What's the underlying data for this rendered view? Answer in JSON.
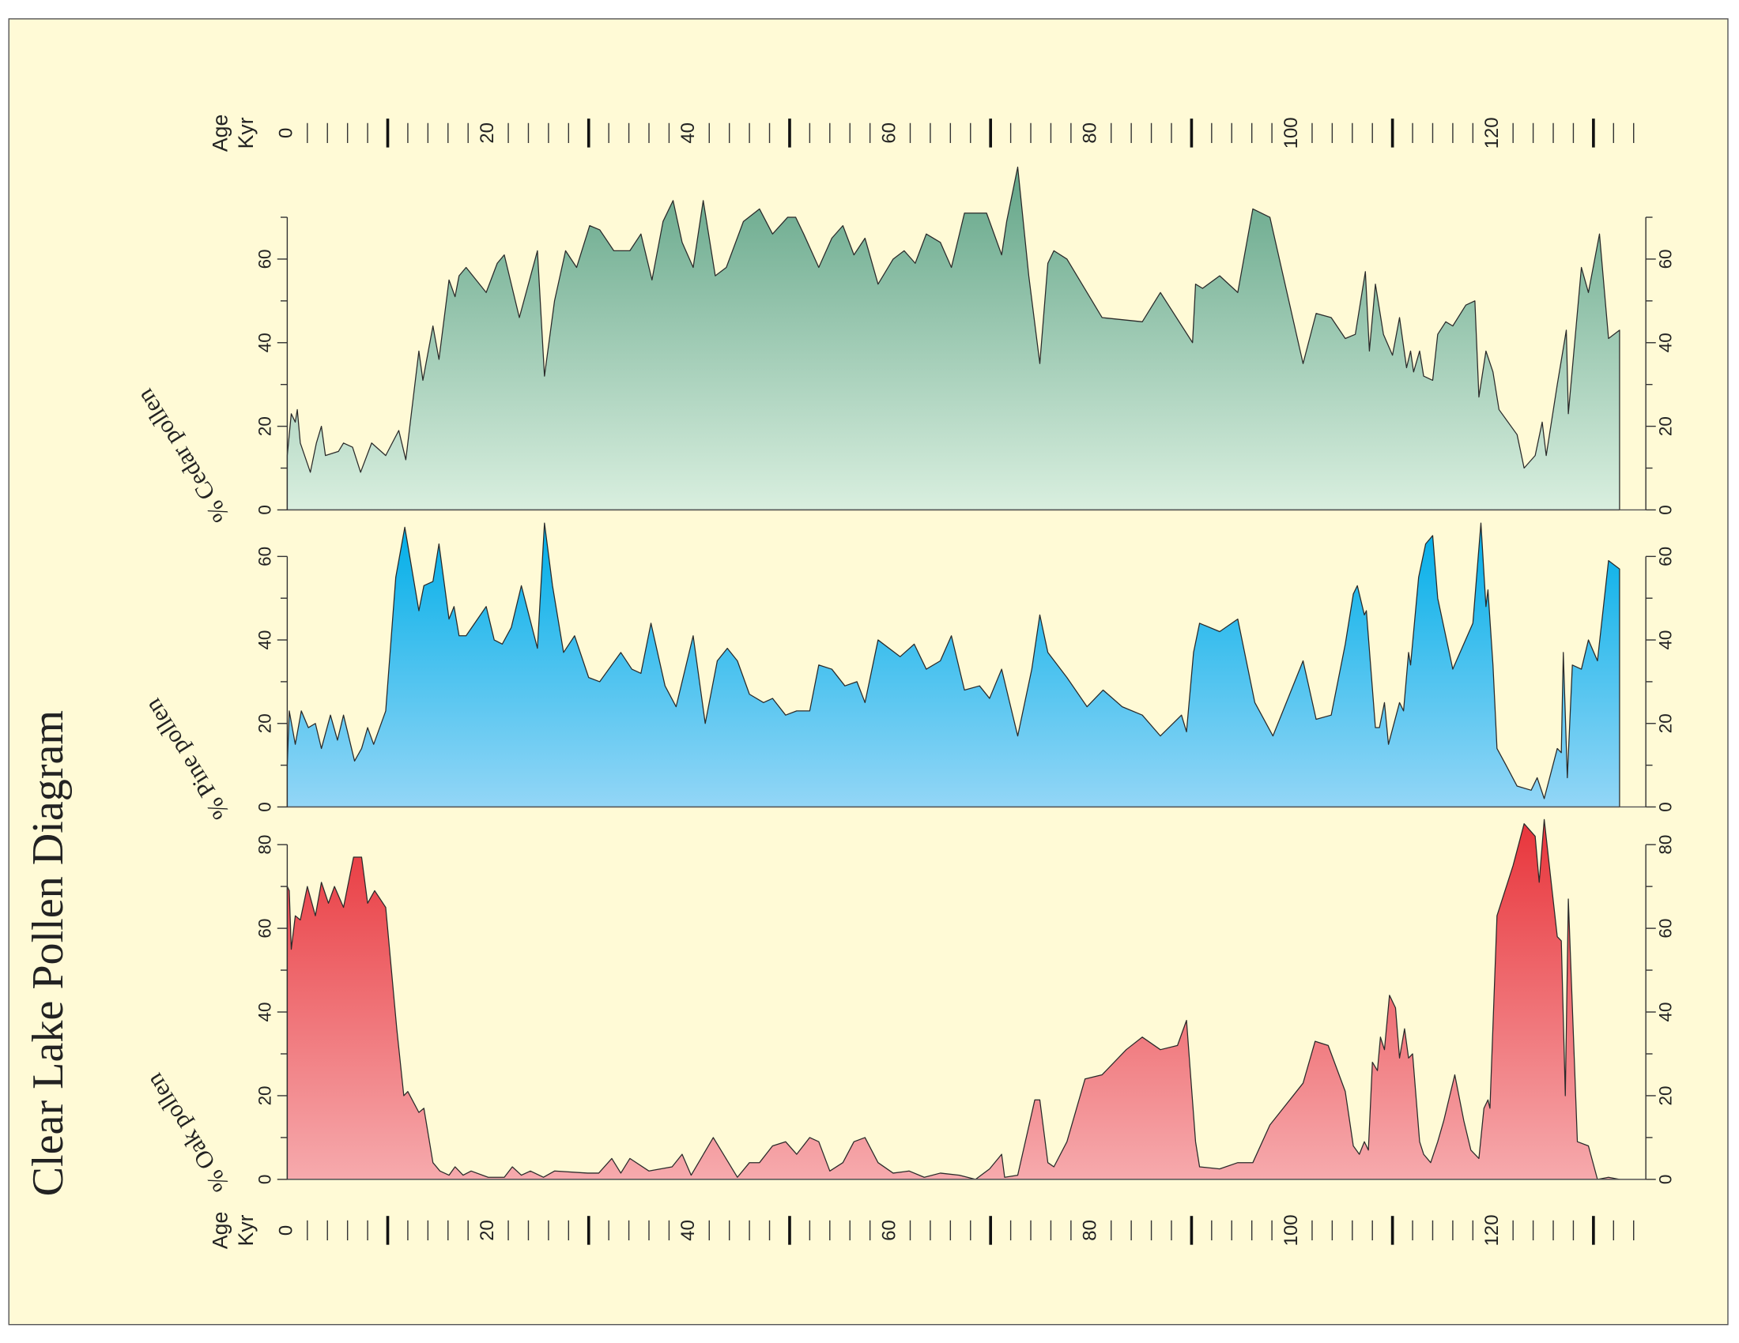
{
  "title": "Clear Lake Pollen Diagram",
  "x_axis": {
    "label": [
      "Age",
      "Kyr"
    ],
    "xlim": [
      0,
      134
    ],
    "xticks": [
      0,
      20,
      40,
      60,
      80,
      100,
      120
    ],
    "xticks_major": [
      10,
      30,
      50,
      70,
      90,
      110,
      130
    ],
    "xminor_step": 2
  },
  "chart_data": [
    {
      "type": "area",
      "ylabel": "% Cedar pollen",
      "color": [
        "#63a588",
        "#d9efdf"
      ],
      "ylim": [
        0,
        70
      ],
      "yticks": [
        0,
        20,
        40,
        60
      ],
      "yminor_step": 10,
      "x": [
        0,
        0.4,
        0.8,
        1,
        1.3,
        2.3,
        2.9,
        3.4,
        3.8,
        5.1,
        5.6,
        6.5,
        7.3,
        8.4,
        9.8,
        11.1,
        11.8,
        13.1,
        13.5,
        14.5,
        15.1,
        16.1,
        16.7,
        17.1,
        17.8,
        19.8,
        20.9,
        21.6,
        23.1,
        24.9,
        25.6,
        26.6,
        27.7,
        28.8,
        30.1,
        31.1,
        32.5,
        34.1,
        35.2,
        36.3,
        37.4,
        38.4,
        39.3,
        40.4,
        41.4,
        42.6,
        43.7,
        45.4,
        47.0,
        48.3,
        49.8,
        50.6,
        51.4,
        52.9,
        54.2,
        55.3,
        56.4,
        57.5,
        58.8,
        60.3,
        61.4,
        62.5,
        63.6,
        65.0,
        66.1,
        67.4,
        69.6,
        71.1,
        71.6,
        72.7,
        73.8,
        74.9,
        75.7,
        76.3,
        77.6,
        81.1,
        85.1,
        86.9,
        90.1,
        90.4,
        91.1,
        92.8,
        94.6,
        96.1,
        97.8,
        101.1,
        102.4,
        103.9,
        105.3,
        106.3,
        107.3,
        107.7,
        108.3,
        109.1,
        110.0,
        110.7,
        111.4,
        111.8,
        112.1,
        112.7,
        113.1,
        114.0,
        114.5,
        115.3,
        116.0,
        117.3,
        118.2,
        118.6,
        119.3,
        120.0,
        120.6,
        122.4,
        123.1,
        124.2,
        124.9,
        125.3,
        126.4,
        127.3,
        127.5,
        128.8,
        129.5,
        130.6,
        131.5,
        132.6
      ],
      "values": [
        13,
        23,
        21,
        24,
        16,
        9,
        16,
        20,
        13,
        14,
        16,
        15,
        9,
        16,
        13,
        19,
        12,
        38,
        31,
        44,
        36,
        55,
        51,
        56,
        58,
        52,
        59,
        61,
        46,
        62,
        32,
        50,
        62,
        58,
        68,
        67,
        62,
        62,
        66,
        55,
        69,
        74,
        64,
        58,
        74,
        56,
        58,
        69,
        72,
        66,
        70,
        70,
        66,
        58,
        65,
        68,
        61,
        65,
        54,
        60,
        62,
        59,
        66,
        64,
        58,
        71,
        71,
        61,
        69,
        82,
        56,
        35,
        59,
        62,
        60,
        46,
        45,
        52,
        40,
        54,
        53,
        56,
        52,
        72,
        70,
        35,
        47,
        46,
        41,
        42,
        57,
        38,
        54,
        42,
        37,
        46,
        34,
        38,
        33,
        38,
        32,
        31,
        42,
        45,
        44,
        49,
        50,
        27,
        38,
        33,
        24,
        18,
        10,
        13,
        21,
        13,
        30,
        43,
        23,
        58,
        52,
        66,
        41,
        43
      ]
    },
    {
      "type": "area",
      "ylabel": "% Pine pollen",
      "color": [
        "#00aee8",
        "#93d6f6"
      ],
      "ylim": [
        0,
        60
      ],
      "yticks": [
        0,
        20,
        40,
        60
      ],
      "yminor_step": 10,
      "x": [
        0,
        0.2,
        0.8,
        1.4,
        2.1,
        2.8,
        3.4,
        4.3,
        5.0,
        5.6,
        6.7,
        7.4,
        8.0,
        8.6,
        9.8,
        10.8,
        11.7,
        13.1,
        13.6,
        14.5,
        15.1,
        16.1,
        16.6,
        17.1,
        17.8,
        19.8,
        20.6,
        21.4,
        22.3,
        23.3,
        24.9,
        25.6,
        26.4,
        27.5,
        28.6,
        30.0,
        31.1,
        33.2,
        34.3,
        35.2,
        36.2,
        37.6,
        38.7,
        40.4,
        41.6,
        42.8,
        43.8,
        44.8,
        46.0,
        47.4,
        48.3,
        49.6,
        50.7,
        52.0,
        52.9,
        54.2,
        55.5,
        56.7,
        57.5,
        58.8,
        61.0,
        62.4,
        63.6,
        65.0,
        66.1,
        67.4,
        68.9,
        69.9,
        71.1,
        72.7,
        74.1,
        74.9,
        75.7,
        77.6,
        79.6,
        81.2,
        83.1,
        85.1,
        86.9,
        89.0,
        89.5,
        90.2,
        90.8,
        92.8,
        94.6,
        96.3,
        98.1,
        101.1,
        102.4,
        103.9,
        105.3,
        106.1,
        106.5,
        107.2,
        107.4,
        108.3,
        108.7,
        109.2,
        109.6,
        110.7,
        111.1,
        111.6,
        111.8,
        112.6,
        113.3,
        114.0,
        114.5,
        116.0,
        118.0,
        118.8,
        119.3,
        119.5,
        120.0,
        120.4,
        121.3,
        122.4,
        123.8,
        124.4,
        125.1,
        126.4,
        126.8,
        127.0,
        127.4,
        127.9,
        128.8,
        129.5,
        130.4,
        131.5,
        132.6
      ],
      "values": [
        10,
        23,
        15,
        23,
        19,
        20,
        14,
        22,
        16,
        22,
        11,
        14,
        19,
        15,
        23,
        55,
        67,
        47,
        53,
        54,
        63,
        45,
        48,
        41,
        41,
        48,
        40,
        39,
        43,
        53,
        38,
        68,
        53,
        37,
        41,
        31,
        30,
        37,
        33,
        32,
        44,
        29,
        24,
        41,
        20,
        35,
        38,
        35,
        27,
        25,
        26,
        22,
        23,
        23,
        34,
        33,
        29,
        30,
        25,
        40,
        36,
        39,
        33,
        35,
        41,
        28,
        29,
        26,
        33,
        17,
        33,
        46,
        37,
        31,
        24,
        28,
        24,
        22,
        17,
        22,
        18,
        37,
        44,
        42,
        45,
        25,
        17,
        35,
        21,
        22,
        39,
        51,
        53,
        46,
        47,
        19,
        19,
        25,
        15,
        25,
        23,
        37,
        34,
        55,
        63,
        65,
        50,
        33,
        44,
        68,
        48,
        52,
        34,
        14,
        10,
        5,
        4,
        7,
        2,
        14,
        13,
        37,
        7,
        34,
        33,
        40,
        35,
        59,
        57
      ]
    },
    {
      "type": "area",
      "ylabel": "% Oak pollen",
      "color": [
        "#e8343a",
        "#f6aaad"
      ],
      "ylim": [
        0,
        80
      ],
      "yticks": [
        0,
        20,
        40,
        60,
        80
      ],
      "yminor_step": 10,
      "x": [
        0,
        0.2,
        0.4,
        0.8,
        1.3,
        2.0,
        2.8,
        3.4,
        4.1,
        4.7,
        5.6,
        6.6,
        7.4,
        8.0,
        8.7,
        9.8,
        10.9,
        11.6,
        12.0,
        13.1,
        13.6,
        14.5,
        15.2,
        16.1,
        16.7,
        17.5,
        18.3,
        20.0,
        21.6,
        22.4,
        23.3,
        24.2,
        25.5,
        26.6,
        29.9,
        31.0,
        32.3,
        33.2,
        34.1,
        36.0,
        38.3,
        39.3,
        40.2,
        42.4,
        44.8,
        46.0,
        47.0,
        48.3,
        49.6,
        50.7,
        52.0,
        52.9,
        54.0,
        55.3,
        56.4,
        57.5,
        58.8,
        60.3,
        61.9,
        63.4,
        65.0,
        66.9,
        68.5,
        69.9,
        71.1,
        71.4,
        72.7,
        74.4,
        74.9,
        75.7,
        76.3,
        77.6,
        79.4,
        81.1,
        83.5,
        85.1,
        86.9,
        88.6,
        89.5,
        90.4,
        90.8,
        92.8,
        94.6,
        96.1,
        97.8,
        101.1,
        102.3,
        103.6,
        105.3,
        106.1,
        106.7,
        107.2,
        107.6,
        108.0,
        108.5,
        108.8,
        109.2,
        109.7,
        110.3,
        110.7,
        111.2,
        111.6,
        112.0,
        112.7,
        113.1,
        113.8,
        114.5,
        115.1,
        116.2,
        117.1,
        117.8,
        118.6,
        119.1,
        119.5,
        119.7,
        120.4,
        122.0,
        123.1,
        124.2,
        124.6,
        125.1,
        125.7,
        126.4,
        126.8,
        127.2,
        127.5,
        128.4,
        129.5,
        130.4,
        131.5,
        132.6
      ],
      "values": [
        70,
        69,
        55,
        63,
        62,
        70,
        63,
        71,
        66,
        70,
        65,
        77,
        77,
        66,
        69,
        65,
        36,
        20,
        21,
        16,
        17,
        4,
        2,
        1,
        3,
        1,
        2,
        0.5,
        0.5,
        3,
        1,
        2,
        0.5,
        2,
        1.5,
        1.5,
        5,
        1.5,
        5,
        2,
        3,
        6,
        1,
        10,
        0.5,
        4,
        4,
        8,
        9,
        6,
        10,
        9,
        2,
        4,
        9,
        10,
        4,
        1.5,
        2,
        0.5,
        1.5,
        1,
        0,
        2.5,
        6,
        0.5,
        1,
        19,
        19,
        4,
        3,
        9,
        24,
        25,
        31,
        34,
        31,
        32,
        38,
        9,
        3,
        2.5,
        4,
        4,
        13,
        23,
        33,
        32,
        21,
        8,
        6,
        9,
        7,
        28,
        26,
        34,
        31,
        44,
        41,
        29,
        36,
        29,
        30,
        9,
        6,
        4,
        9,
        14,
        25,
        14,
        7,
        5,
        17,
        19,
        17,
        63,
        75,
        85,
        82,
        71,
        86,
        73,
        58,
        57,
        20,
        67,
        9,
        8,
        0,
        0.5,
        0
      ]
    }
  ]
}
